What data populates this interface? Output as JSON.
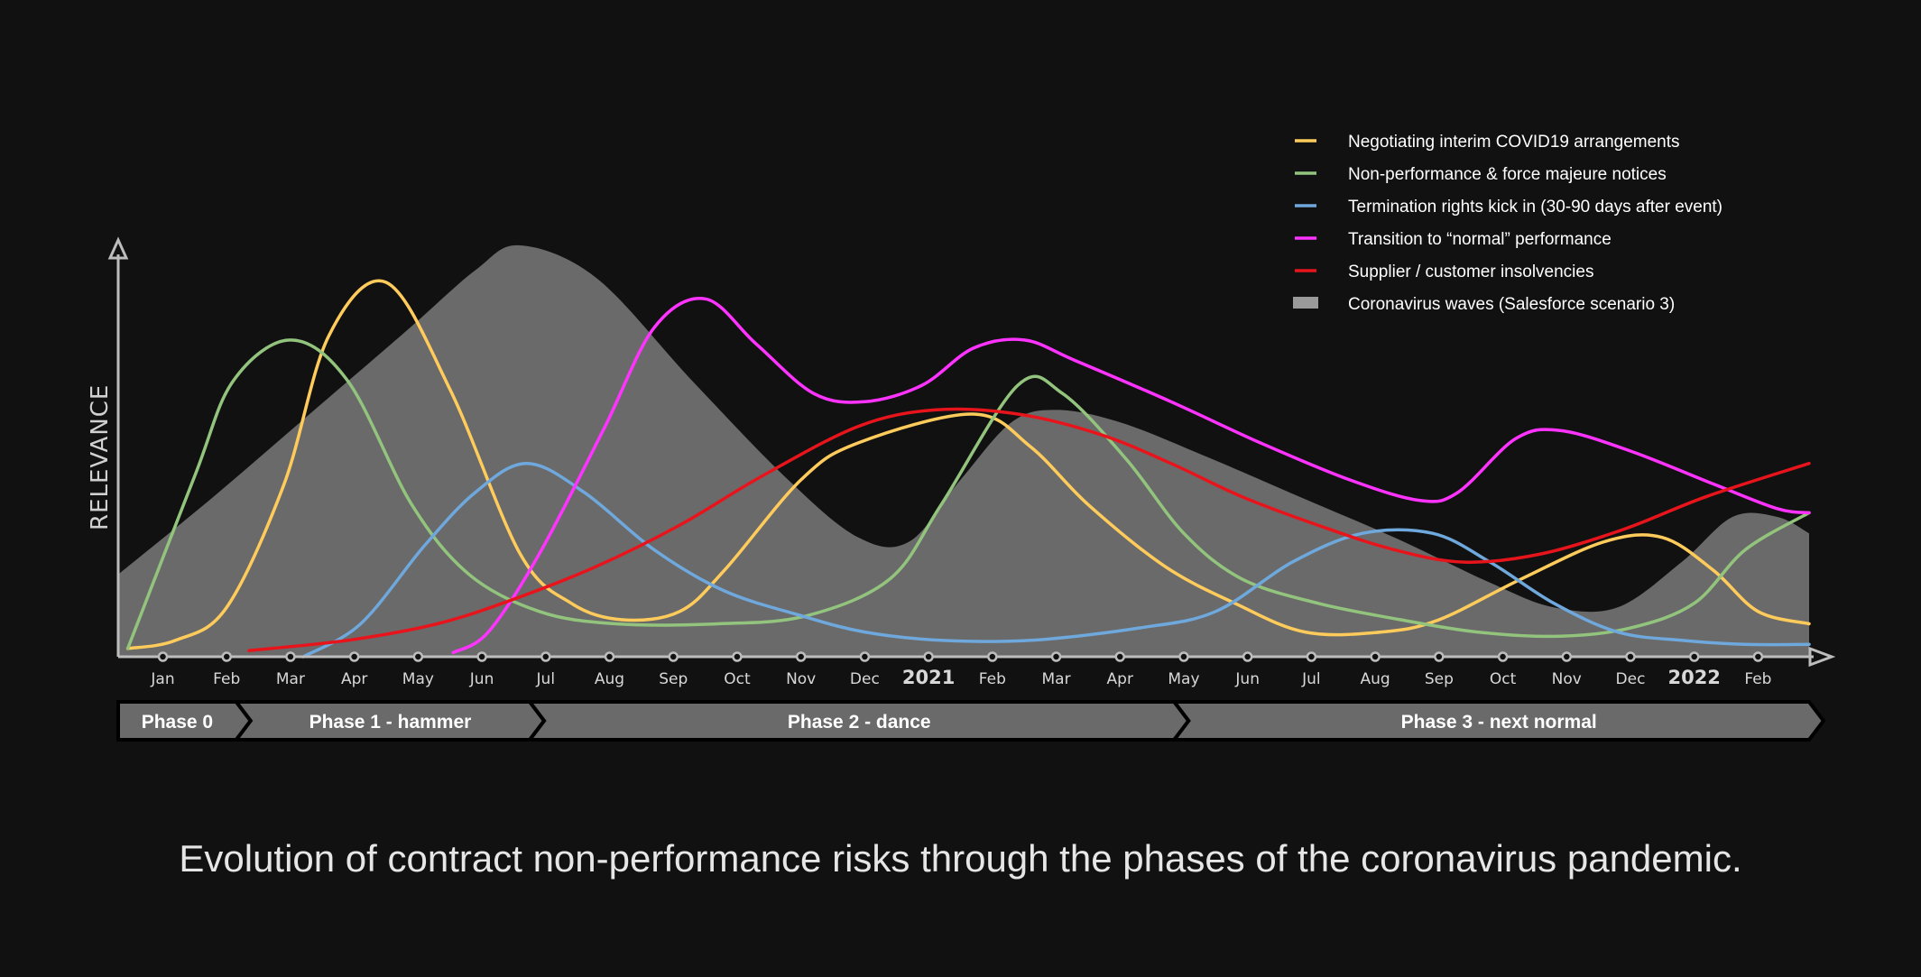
{
  "caption": "Evolution of contract non-performance risks through the phases of the coronavirus pandemic.",
  "chart_data": {
    "type": "line",
    "ylabel": "RELEVANCE",
    "xlim": [
      0,
      26.5
    ],
    "ylim": [
      0,
      100
    ],
    "x_ticks": [
      {
        "label": "Jan",
        "x": 0.7,
        "year": false
      },
      {
        "label": "Feb",
        "x": 1.7,
        "year": false
      },
      {
        "label": "Mar",
        "x": 2.7,
        "year": false
      },
      {
        "label": "Apr",
        "x": 3.7,
        "year": false
      },
      {
        "label": "May",
        "x": 4.7,
        "year": false
      },
      {
        "label": "Jun",
        "x": 5.7,
        "year": false
      },
      {
        "label": "Jul",
        "x": 6.7,
        "year": false
      },
      {
        "label": "Aug",
        "x": 7.7,
        "year": false
      },
      {
        "label": "Sep",
        "x": 8.7,
        "year": false
      },
      {
        "label": "Oct",
        "x": 9.7,
        "year": false
      },
      {
        "label": "Nov",
        "x": 10.7,
        "year": false
      },
      {
        "label": "Dec",
        "x": 11.7,
        "year": false
      },
      {
        "label": "2021",
        "x": 12.7,
        "year": true
      },
      {
        "label": "Feb",
        "x": 13.7,
        "year": false
      },
      {
        "label": "Mar",
        "x": 14.7,
        "year": false
      },
      {
        "label": "Apr",
        "x": 15.7,
        "year": false
      },
      {
        "label": "May",
        "x": 16.7,
        "year": false
      },
      {
        "label": "Jun",
        "x": 17.7,
        "year": false
      },
      {
        "label": "Jul",
        "x": 18.7,
        "year": false
      },
      {
        "label": "Aug",
        "x": 19.7,
        "year": false
      },
      {
        "label": "Sep",
        "x": 20.7,
        "year": false
      },
      {
        "label": "Oct",
        "x": 21.7,
        "year": false
      },
      {
        "label": "Nov",
        "x": 22.7,
        "year": false
      },
      {
        "label": "Dec",
        "x": 23.7,
        "year": false
      },
      {
        "label": "2022",
        "x": 24.7,
        "year": true
      },
      {
        "label": "Feb",
        "x": 25.7,
        "year": false
      }
    ],
    "phases": [
      {
        "label": "Phase 0",
        "start": 0,
        "end": 1.85
      },
      {
        "label": "Phase 1 - hammer",
        "start": 1.85,
        "end": 6.45
      },
      {
        "label": "Phase 2 - dance",
        "start": 6.45,
        "end": 16.55
      },
      {
        "label": "Phase 3 - next normal",
        "start": 16.55,
        "end": 26.5
      }
    ],
    "area": {
      "name": "Coronavirus waves (Salesforce scenario 3)",
      "color": "#6a6a6a",
      "points": [
        [
          0,
          20
        ],
        [
          1.5,
          39
        ],
        [
          3,
          59
        ],
        [
          4.5,
          79
        ],
        [
          5.6,
          94
        ],
        [
          6.3,
          100
        ],
        [
          7.5,
          92
        ],
        [
          9,
          67
        ],
        [
          10.5,
          43
        ],
        [
          11.6,
          29
        ],
        [
          12.4,
          28
        ],
        [
          13.2,
          43
        ],
        [
          14,
          57
        ],
        [
          14.7,
          60
        ],
        [
          15.7,
          57
        ],
        [
          17,
          49
        ],
        [
          18.5,
          39
        ],
        [
          20,
          29
        ],
        [
          21.5,
          18
        ],
        [
          22.5,
          12
        ],
        [
          23.5,
          12
        ],
        [
          24.5,
          23
        ],
        [
          25.3,
          34
        ],
        [
          26,
          34
        ],
        [
          26.5,
          30
        ]
      ]
    },
    "series": [
      {
        "name": "Negotiating interim COVID19 arrangements",
        "color": "#ffcc5c",
        "points": [
          [
            0.15,
            2
          ],
          [
            0.9,
            4
          ],
          [
            1.7,
            12
          ],
          [
            2.6,
            42
          ],
          [
            3.3,
            78
          ],
          [
            4.2,
            91
          ],
          [
            5.2,
            65
          ],
          [
            6.3,
            25
          ],
          [
            7.1,
            13
          ],
          [
            7.9,
            9
          ],
          [
            8.8,
            11
          ],
          [
            9.5,
            21
          ],
          [
            10.7,
            43
          ],
          [
            11.6,
            52
          ],
          [
            13.4,
            59
          ],
          [
            14.3,
            51
          ],
          [
            15.2,
            37
          ],
          [
            16.4,
            22
          ],
          [
            17.5,
            13
          ],
          [
            18.6,
            6
          ],
          [
            19.8,
            6
          ],
          [
            20.7,
            9
          ],
          [
            22,
            19
          ],
          [
            23.3,
            28
          ],
          [
            24.2,
            29
          ],
          [
            25,
            21
          ],
          [
            25.7,
            11
          ],
          [
            26.5,
            8
          ]
        ]
      },
      {
        "name": "Non-performance & force majeure notices",
        "color": "#93c47d",
        "points": [
          [
            0.15,
            2
          ],
          [
            1.2,
            44
          ],
          [
            1.8,
            67
          ],
          [
            2.7,
            77
          ],
          [
            3.6,
            67
          ],
          [
            4.6,
            37
          ],
          [
            5.5,
            20
          ],
          [
            6.6,
            11
          ],
          [
            7.8,
            8
          ],
          [
            9.4,
            8
          ],
          [
            10.8,
            10
          ],
          [
            12.1,
            19
          ],
          [
            12.9,
            37
          ],
          [
            14.1,
            66
          ],
          [
            14.8,
            64
          ],
          [
            15.8,
            48
          ],
          [
            16.7,
            30
          ],
          [
            17.6,
            19
          ],
          [
            18.8,
            13
          ],
          [
            20.1,
            9
          ],
          [
            21.3,
            6
          ],
          [
            22.6,
            5
          ],
          [
            23.7,
            7
          ],
          [
            24.7,
            13
          ],
          [
            25.5,
            26
          ],
          [
            26.5,
            35
          ]
        ]
      },
      {
        "name": "Termination rights kick in (30-90 days after event)",
        "color": "#6fa8dc",
        "points": [
          [
            2.9,
            0
          ],
          [
            3.8,
            8
          ],
          [
            4.8,
            27
          ],
          [
            5.6,
            40
          ],
          [
            6.4,
            47
          ],
          [
            7.3,
            40
          ],
          [
            8.4,
            26
          ],
          [
            9.5,
            16
          ],
          [
            10.7,
            10
          ],
          [
            11.7,
            6
          ],
          [
            12.9,
            4
          ],
          [
            14.3,
            4
          ],
          [
            16,
            7
          ],
          [
            17.2,
            11
          ],
          [
            18.4,
            23
          ],
          [
            19.5,
            30
          ],
          [
            20.6,
            30
          ],
          [
            21.5,
            23
          ],
          [
            22.5,
            13
          ],
          [
            23.5,
            6
          ],
          [
            24.5,
            4
          ],
          [
            25.5,
            3
          ],
          [
            26.5,
            3
          ]
        ]
      },
      {
        "name": "Transition to “normal” performance",
        "color": "#ff33ff",
        "points": [
          [
            5.25,
            1
          ],
          [
            5.8,
            6
          ],
          [
            6.6,
            25
          ],
          [
            7.6,
            55
          ],
          [
            8.4,
            80
          ],
          [
            9.2,
            87
          ],
          [
            10,
            76
          ],
          [
            10.9,
            64
          ],
          [
            11.7,
            62
          ],
          [
            12.6,
            66
          ],
          [
            13.4,
            75
          ],
          [
            14.2,
            77
          ],
          [
            15,
            72
          ],
          [
            16.5,
            62
          ],
          [
            17.9,
            52
          ],
          [
            19.3,
            43
          ],
          [
            20.4,
            38
          ],
          [
            21,
            40
          ],
          [
            21.9,
            53
          ],
          [
            22.6,
            55
          ],
          [
            23.7,
            50
          ],
          [
            25,
            42
          ],
          [
            26,
            36
          ],
          [
            26.5,
            35
          ]
        ]
      },
      {
        "name": "Supplier / customer insolvencies",
        "color": "#e8141c",
        "points": [
          [
            2.05,
            1.5
          ],
          [
            3.6,
            4
          ],
          [
            5,
            8
          ],
          [
            6.2,
            14
          ],
          [
            7.5,
            22
          ],
          [
            8.8,
            32
          ],
          [
            10.1,
            44
          ],
          [
            11.6,
            56
          ],
          [
            12.8,
            60
          ],
          [
            14.1,
            59
          ],
          [
            15.4,
            54
          ],
          [
            16.5,
            47
          ],
          [
            17.6,
            39
          ],
          [
            18.8,
            32
          ],
          [
            20,
            26
          ],
          [
            21.1,
            23
          ],
          [
            22.3,
            25
          ],
          [
            23.6,
            31
          ],
          [
            24.9,
            39
          ],
          [
            26.5,
            47
          ]
        ]
      }
    ],
    "legend_position": "top-right"
  },
  "legend_items": [
    {
      "label": "Negotiating interim COVID19 arrangements",
      "color": "#ffcc5c",
      "kind": "line"
    },
    {
      "label": "Non-performance & force majeure notices",
      "color": "#93c47d",
      "kind": "line"
    },
    {
      "label": "Termination rights kick in (30-90 days after event)",
      "color": "#6fa8dc",
      "kind": "line"
    },
    {
      "label": "Transition to “normal” performance",
      "color": "#ff33ff",
      "kind": "line"
    },
    {
      "label": "Supplier / customer insolvencies",
      "color": "#e8141c",
      "kind": "line"
    },
    {
      "label": "Coronavirus waves (Salesforce scenario 3)",
      "color": "#9a9a9a",
      "kind": "patch"
    }
  ]
}
